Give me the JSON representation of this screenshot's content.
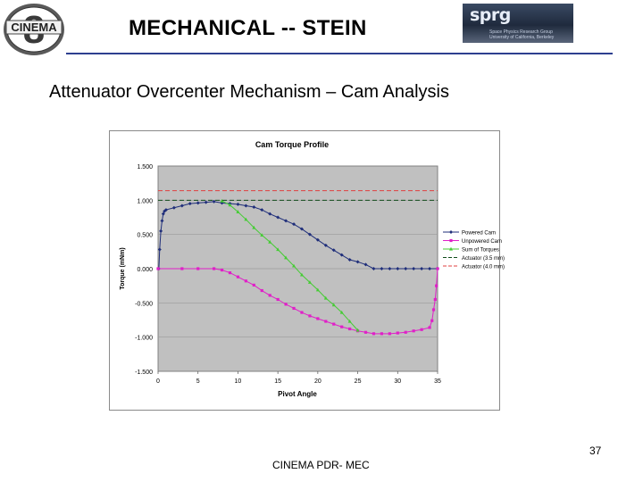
{
  "header": {
    "title": "MECHANICAL -- STEIN",
    "left_logo_text": "CINEMA",
    "right_logo": {
      "wordmark": "sprg",
      "line1": "Space Physics Research Group",
      "line2": "University of California, Berkeley"
    }
  },
  "subtitle": "Attenuator Overcenter Mechanism – Cam Analysis",
  "footer": {
    "text": "CINEMA PDR- MEC",
    "page_number": "37"
  },
  "colors": {
    "rule": "#2d3f8f",
    "plot_bg": "#c0c0c0",
    "chart_border": "#8a8a8a",
    "powered": "#1f2e7a",
    "unpowered": "#e020c8",
    "sum": "#44cc33",
    "act35": "#104a1a",
    "act40": "#e04040"
  },
  "chart_data": {
    "type": "line",
    "title": "Cam Torque Profile",
    "xlabel": "Pivot Angle",
    "ylabel": "Torque (mNm)",
    "xlim": [
      0,
      35
    ],
    "ylim": [
      -1.5,
      1.5
    ],
    "xticks": [
      0,
      5,
      10,
      15,
      20,
      25,
      30,
      35
    ],
    "yticks": [
      1.5,
      1.0,
      0.5,
      0.0,
      -0.5,
      -1.0,
      -1.5
    ],
    "ytick_labels": [
      "1.500",
      "1.000",
      "0.500",
      "0.000",
      "-0.500",
      "-1.000",
      "-1.500"
    ],
    "legend_position": "right",
    "grid": {
      "horizontal": true,
      "vertical": false
    },
    "series": [
      {
        "name": "Powered Cam",
        "color": "#1f2e7a",
        "marker": "diamond",
        "dash": "solid",
        "points": [
          [
            0.1,
            0.0
          ],
          [
            0.2,
            0.28
          ],
          [
            0.35,
            0.55
          ],
          [
            0.5,
            0.7
          ],
          [
            0.65,
            0.8
          ],
          [
            0.8,
            0.84
          ],
          [
            1.0,
            0.86
          ],
          [
            2.0,
            0.89
          ],
          [
            3.0,
            0.92
          ],
          [
            4.0,
            0.95
          ],
          [
            5.0,
            0.96
          ],
          [
            6.0,
            0.97
          ],
          [
            7.0,
            0.98
          ],
          [
            8.0,
            0.96
          ],
          [
            9.0,
            0.95
          ],
          [
            10.0,
            0.94
          ],
          [
            11.0,
            0.92
          ],
          [
            12.0,
            0.9
          ],
          [
            13.0,
            0.86
          ],
          [
            14.0,
            0.8
          ],
          [
            15.0,
            0.75
          ],
          [
            16.0,
            0.7
          ],
          [
            17.0,
            0.65
          ],
          [
            18.0,
            0.58
          ],
          [
            19.0,
            0.5
          ],
          [
            20.0,
            0.42
          ],
          [
            21.0,
            0.34
          ],
          [
            22.0,
            0.27
          ],
          [
            23.0,
            0.2
          ],
          [
            24.0,
            0.13
          ],
          [
            25.0,
            0.1
          ],
          [
            26.0,
            0.06
          ],
          [
            27.0,
            0.0
          ],
          [
            28.0,
            0.0
          ],
          [
            29.0,
            0.0
          ],
          [
            30.0,
            0.0
          ],
          [
            31.0,
            0.0
          ],
          [
            32.0,
            0.0
          ],
          [
            33.0,
            0.0
          ],
          [
            34.0,
            0.0
          ],
          [
            35.0,
            0.0
          ]
        ]
      },
      {
        "name": "Unpowered Cam",
        "color": "#e020c8",
        "marker": "square",
        "dash": "solid",
        "points": [
          [
            0.0,
            0.0
          ],
          [
            3.0,
            0.0
          ],
          [
            5.0,
            0.0
          ],
          [
            7.0,
            0.0
          ],
          [
            8.0,
            -0.02
          ],
          [
            9.0,
            -0.06
          ],
          [
            10.0,
            -0.12
          ],
          [
            11.0,
            -0.18
          ],
          [
            12.0,
            -0.24
          ],
          [
            13.0,
            -0.32
          ],
          [
            14.0,
            -0.39
          ],
          [
            15.0,
            -0.45
          ],
          [
            16.0,
            -0.52
          ],
          [
            17.0,
            -0.58
          ],
          [
            18.0,
            -0.64
          ],
          [
            19.0,
            -0.69
          ],
          [
            20.0,
            -0.73
          ],
          [
            21.0,
            -0.77
          ],
          [
            22.0,
            -0.81
          ],
          [
            23.0,
            -0.85
          ],
          [
            24.0,
            -0.88
          ],
          [
            25.0,
            -0.91
          ],
          [
            26.0,
            -0.93
          ],
          [
            27.0,
            -0.95
          ],
          [
            28.0,
            -0.95
          ],
          [
            29.0,
            -0.95
          ],
          [
            30.0,
            -0.94
          ],
          [
            31.0,
            -0.93
          ],
          [
            32.0,
            -0.91
          ],
          [
            33.0,
            -0.89
          ],
          [
            34.0,
            -0.86
          ],
          [
            34.3,
            -0.76
          ],
          [
            34.5,
            -0.6
          ],
          [
            34.7,
            -0.45
          ],
          [
            34.85,
            -0.25
          ],
          [
            35.0,
            0.0
          ]
        ]
      },
      {
        "name": "Sum of Torques",
        "color": "#44cc33",
        "marker": "triangle",
        "dash": "solid",
        "points": [
          [
            8.0,
            0.99
          ],
          [
            9.0,
            0.93
          ],
          [
            10.0,
            0.83
          ],
          [
            11.0,
            0.72
          ],
          [
            12.0,
            0.6
          ],
          [
            13.0,
            0.49
          ],
          [
            14.0,
            0.39
          ],
          [
            15.0,
            0.28
          ],
          [
            16.0,
            0.16
          ],
          [
            17.0,
            0.04
          ],
          [
            18.0,
            -0.09
          ],
          [
            19.0,
            -0.2
          ],
          [
            20.0,
            -0.31
          ],
          [
            21.0,
            -0.43
          ],
          [
            22.0,
            -0.53
          ],
          [
            23.0,
            -0.64
          ],
          [
            24.0,
            -0.77
          ],
          [
            25.0,
            -0.9
          ]
        ]
      },
      {
        "name": "Actuator  (3.5 mm)",
        "color": "#104a1a",
        "marker": "none",
        "dash": "dashed",
        "points": [
          [
            0,
            1.0
          ],
          [
            35,
            1.0
          ]
        ]
      },
      {
        "name": "Actuator (4.0 mm)",
        "color": "#e04040",
        "marker": "none",
        "dash": "dashed",
        "points": [
          [
            0,
            1.14
          ],
          [
            35,
            1.14
          ]
        ]
      }
    ]
  }
}
